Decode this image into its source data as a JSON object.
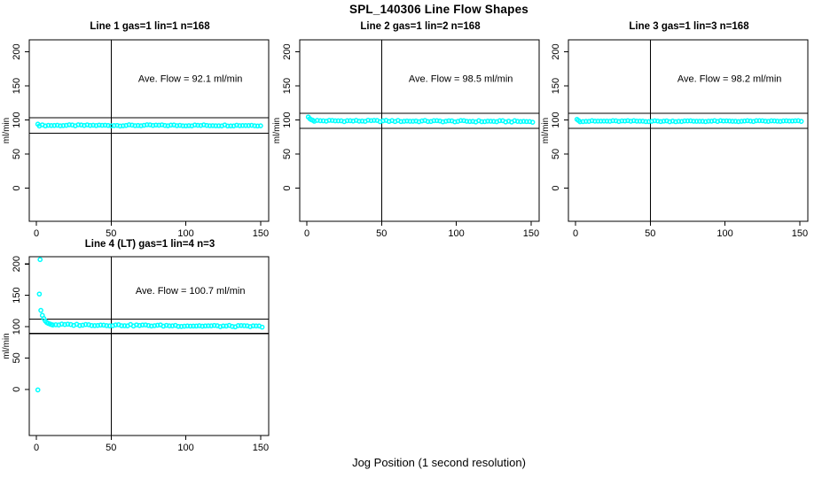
{
  "figure": {
    "title": "SPL_140306  Line Flow Shapes",
    "xlabel": "Jog Position (1 second resolution)"
  },
  "colors": {
    "point": "#00FFFF",
    "axis": "#000000",
    "background": "#FFFFFF"
  },
  "chart_data": [
    {
      "type": "scatter",
      "id": "line1",
      "title": "Line 1 gas=1 lin=1 n=168",
      "annotation": "Ave. Flow =  92.1  ml/min",
      "ave_flow_ml_min": 92.1,
      "n": 168,
      "ylabel": "ml/min",
      "x_ticks": [
        0,
        50,
        100,
        150
      ],
      "y_ticks": [
        0,
        50,
        100,
        150,
        200
      ],
      "xlim": [
        -5,
        157
      ],
      "ylim": [
        -48,
        217
      ],
      "ref_hlines": [
        103.5,
        80.5
      ],
      "ref_vline": 50,
      "transient_points": [
        [
          1,
          93.8
        ]
      ],
      "steady_band": {
        "x_from": 2,
        "x_to": 151,
        "x_step": 2,
        "y_start": 92.0,
        "y_end": 92.0,
        "jitter": 0.9
      },
      "annotation_pos": [
        103,
        156
      ]
    },
    {
      "type": "scatter",
      "id": "line2",
      "title": "Line 2 gas=1 lin=2 n=168",
      "annotation": "Ave. Flow =  98.5  ml/min",
      "ave_flow_ml_min": 98.5,
      "n": 168,
      "ylabel": "ml/min",
      "x_ticks": [
        0,
        50,
        100,
        150
      ],
      "y_ticks": [
        0,
        50,
        100,
        150,
        200
      ],
      "xlim": [
        -5,
        157
      ],
      "ylim": [
        -48,
        217
      ],
      "ref_hlines": [
        109.5,
        87.5
      ],
      "ref_vline": 50,
      "transient_points": [
        [
          1,
          104.3
        ],
        [
          2,
          101.8
        ],
        [
          3,
          100.3
        ],
        [
          4,
          99.5
        ]
      ],
      "steady_band": {
        "x_from": 5,
        "x_to": 151,
        "x_step": 2,
        "y_start": 98.8,
        "y_end": 97.7,
        "jitter": 1.1
      },
      "annotation_pos": [
        103,
        156
      ]
    },
    {
      "type": "scatter",
      "id": "line3",
      "title": "Line 3 gas=1 lin=3 n=168",
      "annotation": "Ave. Flow =  98.2  ml/min",
      "ave_flow_ml_min": 98.2,
      "n": 168,
      "ylabel": "ml/min",
      "x_ticks": [
        0,
        50,
        100,
        150
      ],
      "y_ticks": [
        0,
        50,
        100,
        150,
        200
      ],
      "xlim": [
        -5,
        157
      ],
      "ylim": [
        -48,
        217
      ],
      "ref_hlines": [
        109.5,
        87.5
      ],
      "ref_vline": 50,
      "transient_points": [
        [
          1,
          100.8
        ],
        [
          2,
          99.2
        ]
      ],
      "steady_band": {
        "x_from": 3,
        "x_to": 151,
        "x_step": 2,
        "y_start": 98.2,
        "y_end": 98.2,
        "jitter": 0.8
      },
      "annotation_pos": [
        103,
        156
      ]
    },
    {
      "type": "scatter",
      "id": "line4",
      "title": "Line 4 (LT) gas=1 lin=4 n=3",
      "annotation": "Ave. Flow =  100.7  ml/min",
      "ave_flow_ml_min": 100.7,
      "n": 3,
      "ylabel": "ml/min",
      "x_ticks": [
        0,
        50,
        100,
        150
      ],
      "y_ticks": [
        0,
        50,
        100,
        150,
        200
      ],
      "xlim": [
        -5,
        157
      ],
      "ylim": [
        -75,
        211
      ],
      "ref_hlines": [
        112.0,
        89.0
      ],
      "ref_vline": 50,
      "transient_points": [
        [
          1,
          -1
        ],
        [
          2.5,
          207
        ],
        [
          2,
          152
        ],
        [
          3,
          126
        ],
        [
          4,
          118
        ],
        [
          5,
          113
        ],
        [
          6,
          109
        ],
        [
          7,
          106.5
        ],
        [
          8,
          105.2
        ],
        [
          9,
          104.2
        ],
        [
          10,
          103.4
        ]
      ],
      "steady_band": {
        "x_from": 11,
        "x_to": 151,
        "x_step": 2,
        "y_start": 103.2,
        "y_end": 100.3,
        "jitter": 1.2
      },
      "annotation_pos": [
        103,
        152
      ]
    }
  ]
}
